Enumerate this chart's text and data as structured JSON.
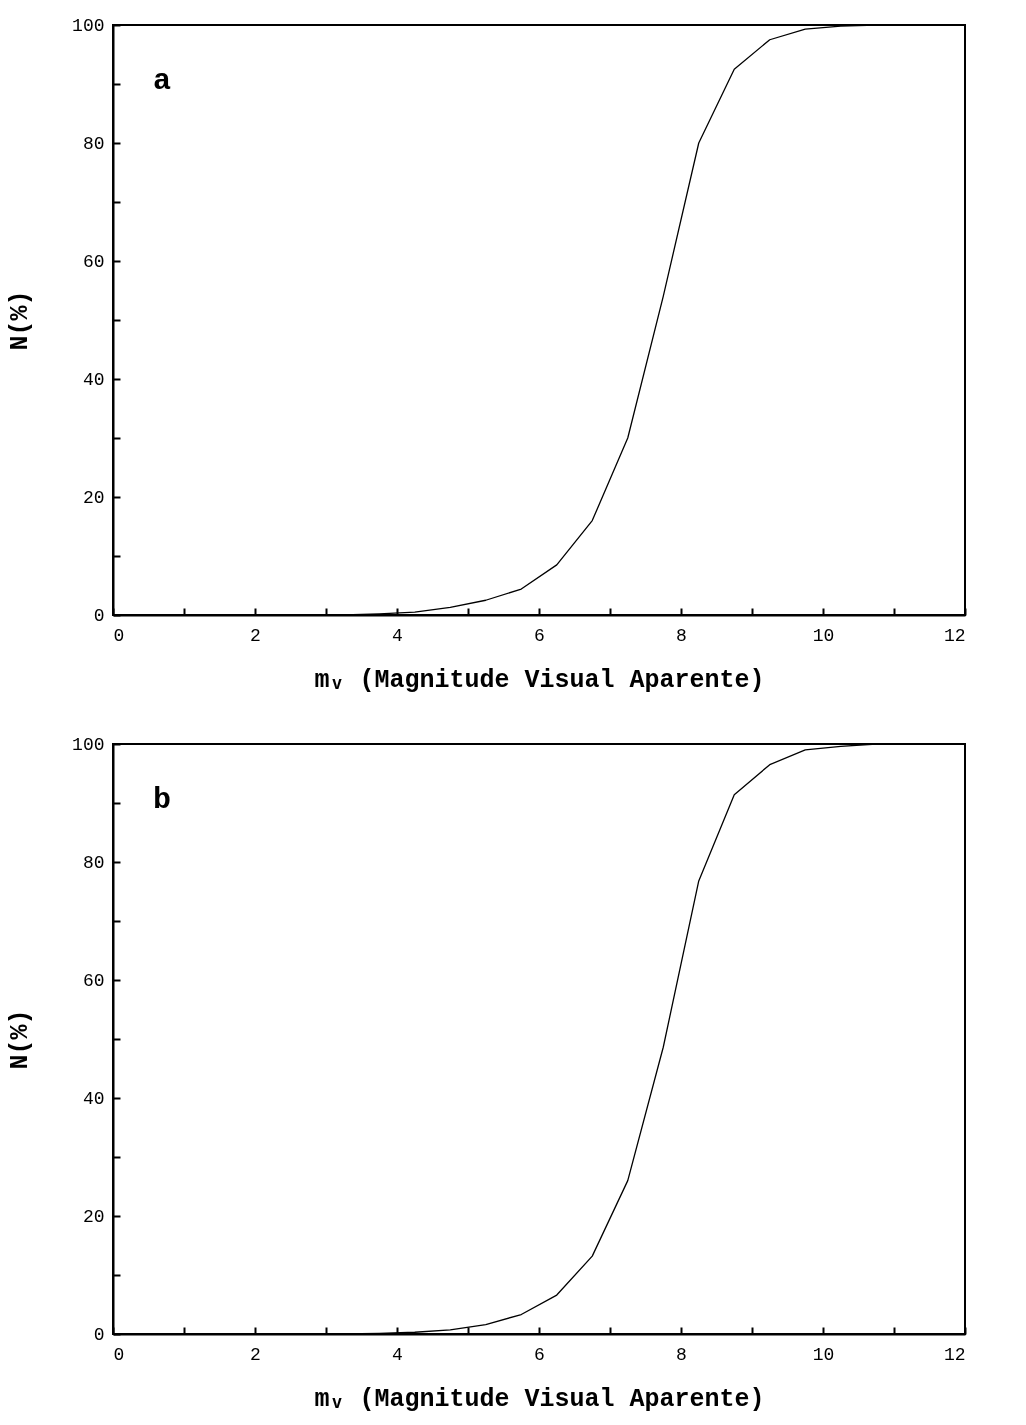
{
  "chart_data": [
    {
      "type": "line",
      "annotations": [
        "a"
      ],
      "xlabel": "mᵥ (Magnitude Visual Aparente)",
      "ylabel": "N(%)",
      "x": [
        0.25,
        0.75,
        1.25,
        1.75,
        2.25,
        2.75,
        3.25,
        3.75,
        4.25,
        4.75,
        5.25,
        5.75,
        6.25,
        6.75,
        7.25,
        7.75,
        8.25,
        8.75,
        9.25,
        9.75,
        10.25,
        10.75,
        11.25,
        11.75
      ],
      "series": [
        {
          "color": "#000000",
          "values": [
            0,
            0,
            0,
            0,
            0,
            0,
            0,
            0.2,
            0.5,
            1.3,
            2.5,
            4.4,
            8.5,
            16,
            30,
            54,
            80,
            92.5,
            97.5,
            99.3,
            99.8,
            100,
            100,
            100
          ]
        }
      ],
      "xlim": [
        0,
        12
      ],
      "xticks": [
        0,
        {
          "value": 1,
          "label": null
        },
        2,
        {
          "value": 3,
          "label": null
        },
        4,
        {
          "value": 5,
          "label": null
        },
        6,
        {
          "value": 7,
          "label": null
        },
        8,
        {
          "value": 9,
          "label": null
        },
        10,
        {
          "value": 11,
          "label": null
        },
        12
      ],
      "ylim": [
        0,
        100
      ],
      "yticks": [
        0,
        {
          "value": 10,
          "label": null
        },
        20,
        {
          "value": 30,
          "label": null
        },
        40,
        {
          "value": 50,
          "label": null
        },
        60,
        {
          "value": 70,
          "label": null
        },
        80,
        {
          "value": 90,
          "label": null
        },
        100
      ]
    },
    {
      "type": "line",
      "annotations": [
        "b"
      ],
      "xlabel": "mᵥ (Magnitude Visual Aparente)",
      "ylabel": "N(%)",
      "x": [
        0.25,
        0.75,
        1.25,
        1.75,
        2.25,
        2.75,
        3.25,
        3.75,
        4.25,
        4.75,
        5.25,
        5.75,
        6.25,
        6.75,
        7.25,
        7.75,
        8.25,
        8.75,
        9.25,
        9.75,
        10.25,
        10.75,
        11.25,
        11.75
      ],
      "series": [
        {
          "color": "#000000",
          "values": [
            0,
            0,
            0,
            0,
            0,
            0,
            0,
            0.1,
            0.3,
            0.7,
            1.6,
            3.3,
            6.6,
            13.2,
            26,
            48.6,
            76.8,
            91.4,
            96.5,
            99,
            99.6,
            100,
            100,
            100
          ]
        }
      ],
      "xlim": [
        0,
        12
      ],
      "xticks": [
        0,
        {
          "value": 1,
          "label": null
        },
        2,
        {
          "value": 3,
          "label": null
        },
        4,
        {
          "value": 5,
          "label": null
        },
        6,
        {
          "value": 7,
          "label": null
        },
        8,
        {
          "value": 9,
          "label": null
        },
        10,
        {
          "value": 11,
          "label": null
        },
        12
      ],
      "ylim": [
        0,
        100
      ],
      "yticks": [
        0,
        {
          "value": 10,
          "label": null
        },
        20,
        {
          "value": 30,
          "label": null
        },
        40,
        {
          "value": 50,
          "label": null
        },
        60,
        {
          "value": 70,
          "label": null
        },
        80,
        {
          "value": 90,
          "label": null
        },
        100
      ]
    }
  ]
}
